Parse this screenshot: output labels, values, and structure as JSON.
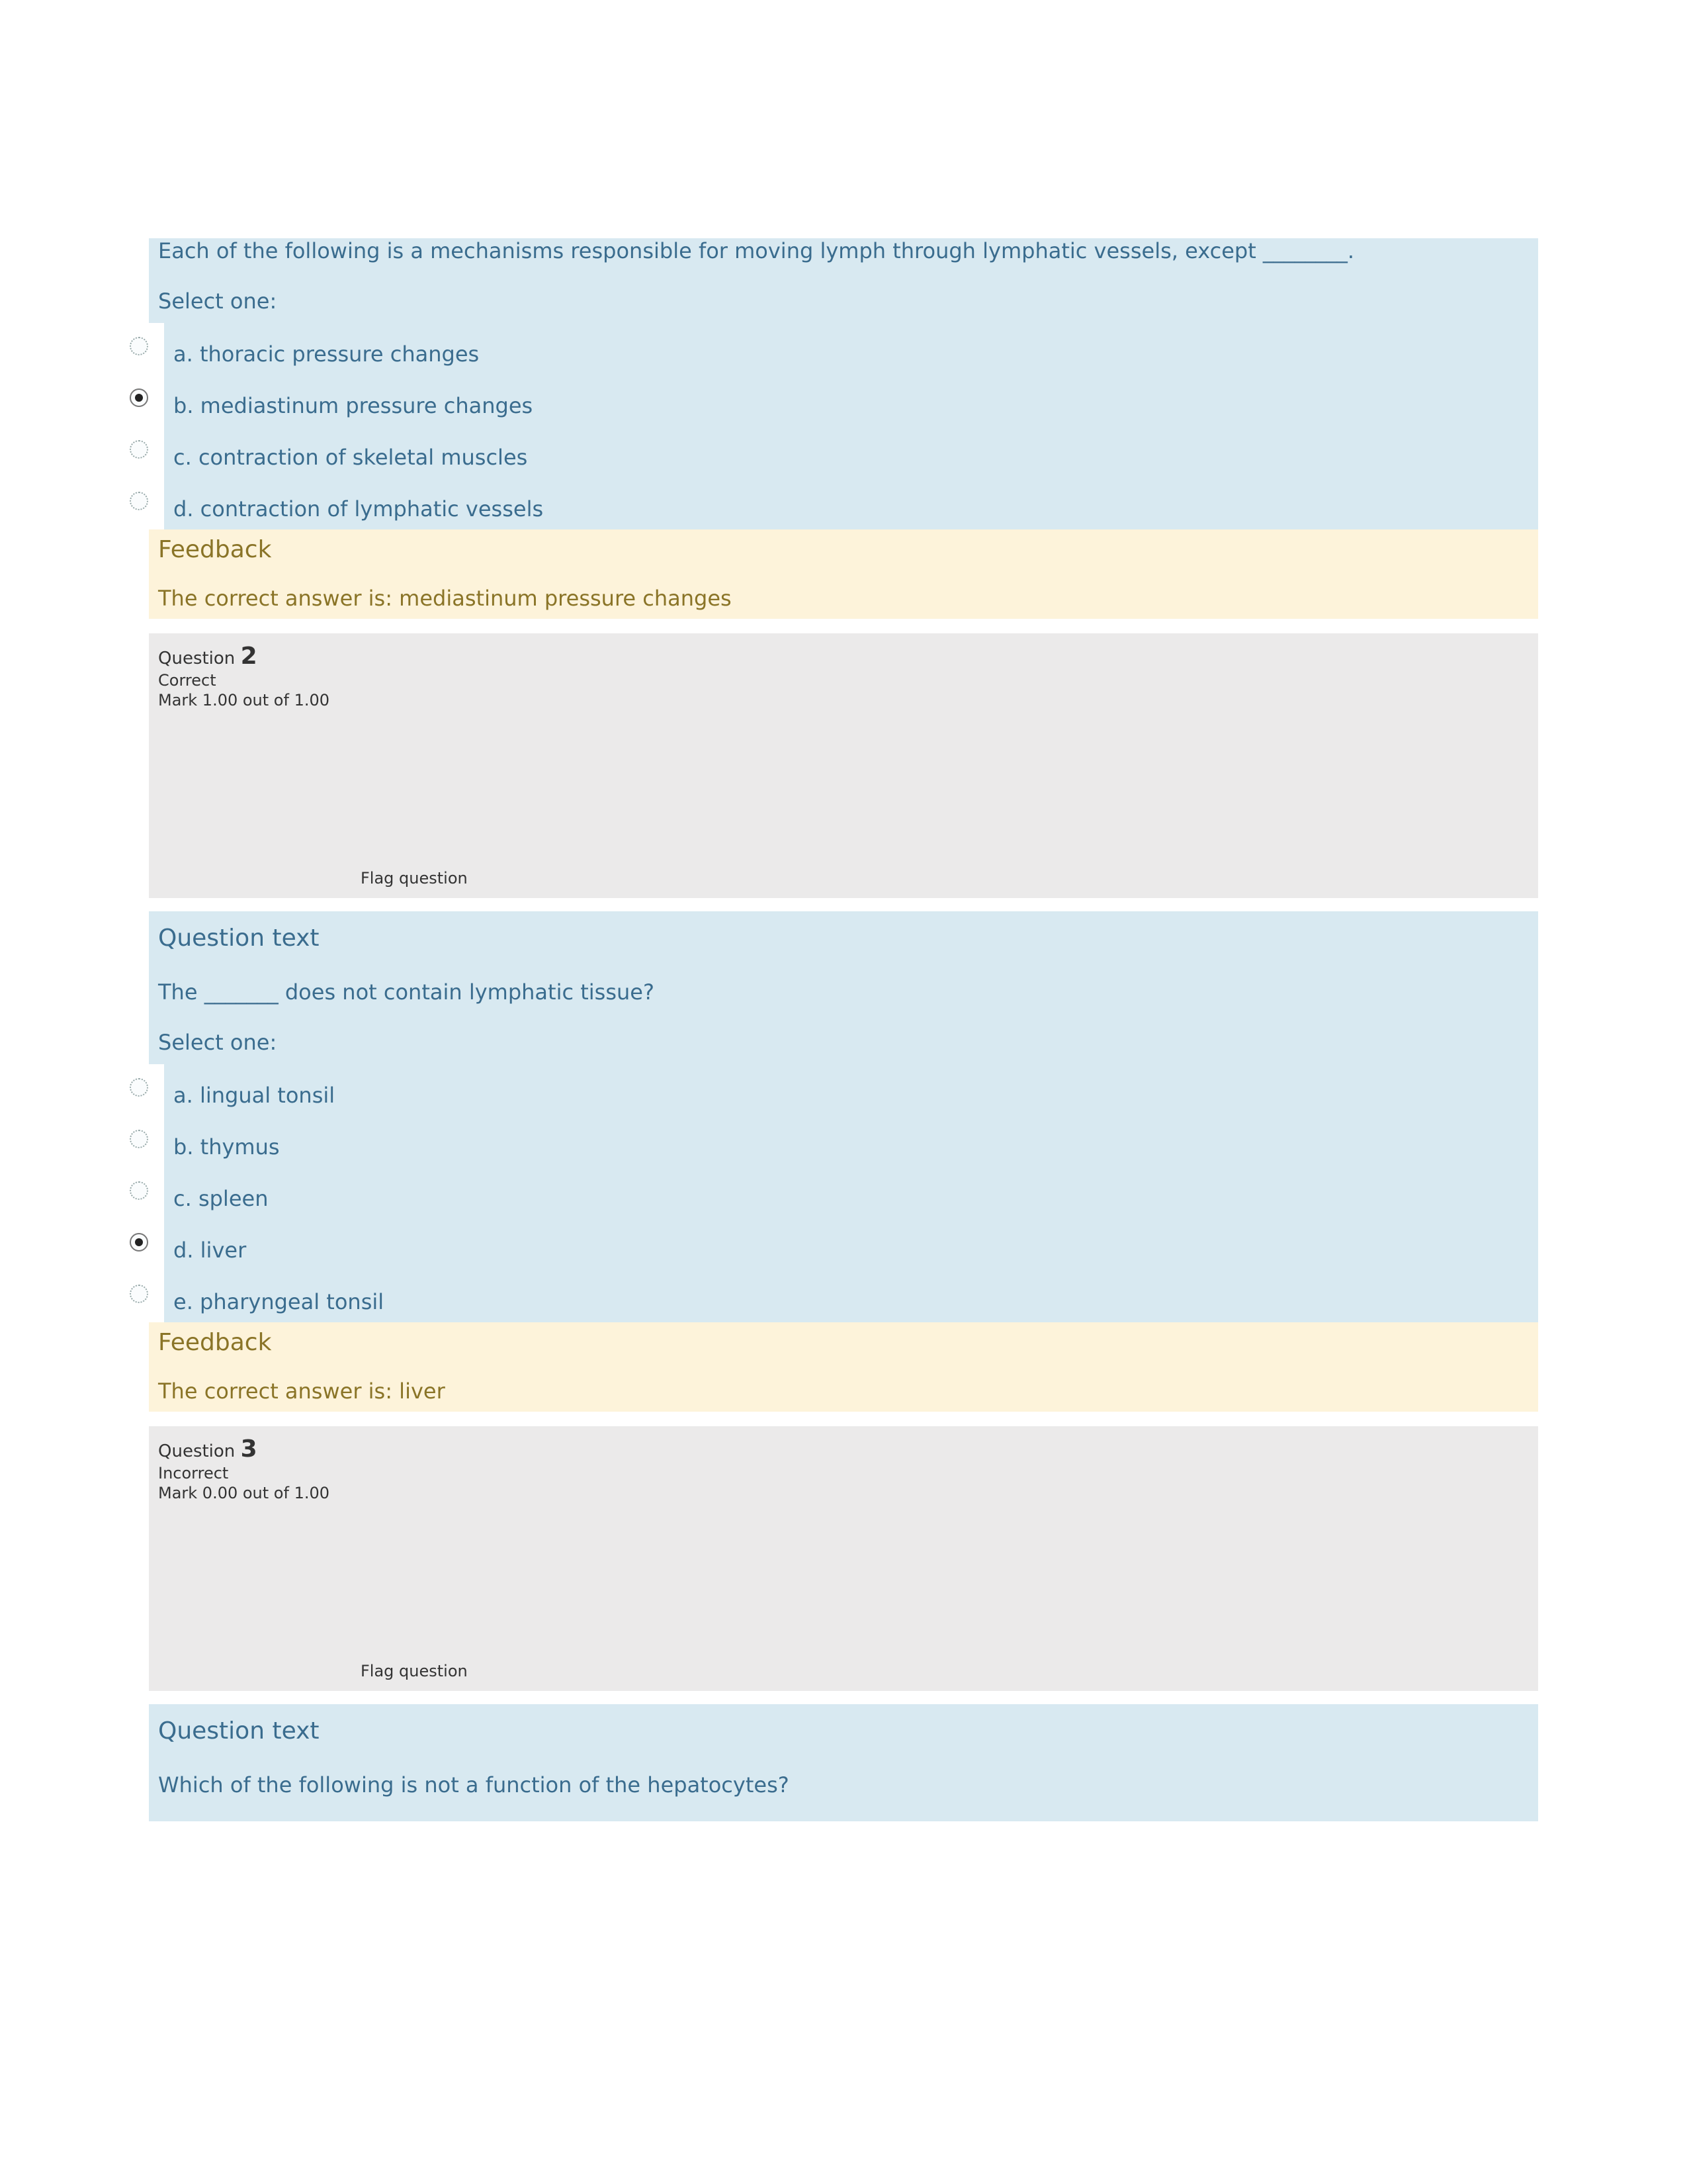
{
  "q1": {
    "prompt": "Each of the following is a mechanisms responsible for moving lymph through lymphatic vessels, except ________.",
    "select": "Select one:",
    "options": [
      {
        "label": "a. thoracic pressure changes",
        "selected": false
      },
      {
        "label": "b. mediastinum pressure changes",
        "selected": true
      },
      {
        "label": "c. contraction of skeletal muscles",
        "selected": false
      },
      {
        "label": "d. contraction of lymphatic vessels",
        "selected": false
      }
    ],
    "feedback_heading": "Feedback",
    "feedback_answer": "The correct answer is: mediastinum pressure changes"
  },
  "info2": {
    "question_label": "Question ",
    "number": "2",
    "status": "Correct",
    "mark": "Mark 1.00 out of 1.00",
    "flag": "Flag question"
  },
  "q2": {
    "heading": "Question text",
    "prompt": "The _______ does not contain lymphatic tissue?",
    "select": "Select one:",
    "options": [
      {
        "label": "a. lingual tonsil",
        "selected": false
      },
      {
        "label": "b. thymus",
        "selected": false
      },
      {
        "label": "c. spleen",
        "selected": false
      },
      {
        "label": "d. liver",
        "selected": true
      },
      {
        "label": "e. pharyngeal tonsil",
        "selected": false
      }
    ],
    "feedback_heading": "Feedback",
    "feedback_answer": "The correct answer is: liver"
  },
  "info3": {
    "question_label": "Question ",
    "number": "3",
    "status": "Incorrect",
    "mark": "Mark 0.00 out of 1.00",
    "flag": "Flag question"
  },
  "q3": {
    "heading": "Question text",
    "prompt": "Which of the following is not a function of the hepatocytes?"
  },
  "colors": {
    "question_bg": "#d8e9f1",
    "question_text": "#3a6c8e",
    "feedback_bg": "#fdf3da",
    "feedback_text": "#8a7427",
    "info_bg": "#ebeaea",
    "info_text": "#333333",
    "page_bg": "#ffffff"
  }
}
